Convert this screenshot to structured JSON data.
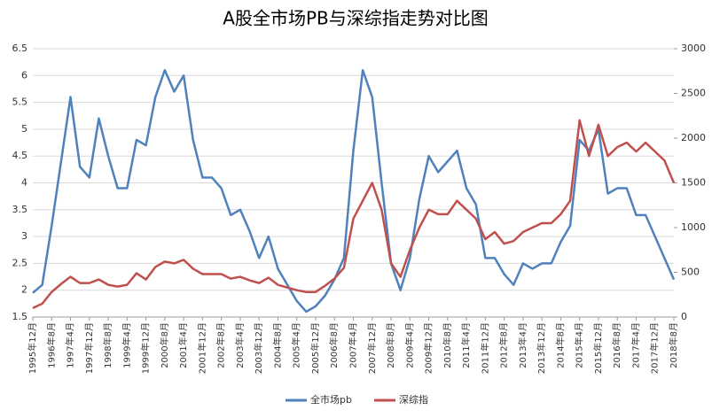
{
  "chart_data": {
    "type": "line",
    "title": "A股全市场PB与深综指走势对比图",
    "categories": [
      "1995年12月",
      null,
      "1996年8月",
      null,
      "1997年4月",
      null,
      "1997年12月",
      null,
      "1998年8月",
      null,
      "1999年4月",
      null,
      "1999年12月",
      null,
      "2000年8月",
      null,
      "2001年4月",
      null,
      "2001年12月",
      null,
      "2002年8月",
      null,
      "2003年4月",
      null,
      "2003年12月",
      null,
      "2004年8月",
      null,
      "2005年4月",
      null,
      "2005年12月",
      null,
      "2006年8月",
      null,
      "2007年4月",
      null,
      "2007年12月",
      null,
      "2008年8月",
      null,
      "2009年4月",
      null,
      "2009年12月",
      null,
      "2010年8月",
      null,
      "2011年4月",
      null,
      "2011年12月",
      null,
      "2012年8月",
      null,
      "2013年4月",
      null,
      "2013年12月",
      null,
      "2014年8月",
      null,
      "2015年4月",
      null,
      "2015年12月",
      null,
      "2016年8月",
      null,
      "2017年4月",
      null,
      "2017年12月",
      null,
      "2018年8月"
    ],
    "series": [
      {
        "name": "全市场pb",
        "color": "#4f81bd",
        "axis": "y",
        "values": [
          1.95,
          2.1,
          3.2,
          4.4,
          5.6,
          4.3,
          4.1,
          5.2,
          4.5,
          3.9,
          3.9,
          4.8,
          4.7,
          5.6,
          6.1,
          5.7,
          6.0,
          4.8,
          4.1,
          4.1,
          3.9,
          3.4,
          3.5,
          3.1,
          2.6,
          3.0,
          2.4,
          2.1,
          1.8,
          1.6,
          1.7,
          1.9,
          2.2,
          2.6,
          4.6,
          6.1,
          5.6,
          4.0,
          2.5,
          2.0,
          2.6,
          3.7,
          4.5,
          4.2,
          4.4,
          4.6,
          3.9,
          3.6,
          2.6,
          2.6,
          2.3,
          2.1,
          2.5,
          2.4,
          2.5,
          2.5,
          2.9,
          3.2,
          4.8,
          4.6,
          5.0,
          3.8,
          3.9,
          3.9,
          3.4,
          3.4,
          3.0,
          2.6,
          2.2
        ]
      },
      {
        "name": "深综指",
        "color": "#c0504d",
        "axis": "y2",
        "values": [
          100,
          150,
          280,
          370,
          450,
          380,
          380,
          420,
          360,
          340,
          360,
          490,
          420,
          560,
          620,
          600,
          640,
          540,
          480,
          480,
          480,
          430,
          450,
          410,
          380,
          440,
          360,
          330,
          300,
          280,
          280,
          350,
          430,
          550,
          1100,
          1300,
          1500,
          1200,
          600,
          450,
          750,
          1000,
          1200,
          1150,
          1150,
          1300,
          1200,
          1100,
          870,
          950,
          820,
          850,
          950,
          1000,
          1050,
          1050,
          1150,
          1300,
          2200,
          1800,
          2150,
          1800,
          1900,
          1950,
          1850,
          1950,
          1850,
          1750,
          1500
        ]
      }
    ],
    "ylim": [
      1.5,
      6.5
    ],
    "yticks": [
      1.5,
      2,
      2.5,
      3,
      3.5,
      4,
      4.5,
      5,
      5.5,
      6,
      6.5
    ],
    "y2lim": [
      0,
      3000
    ],
    "y2ticks": [
      0,
      500,
      1000,
      1500,
      2000,
      2500,
      3000
    ],
    "grid": true
  }
}
